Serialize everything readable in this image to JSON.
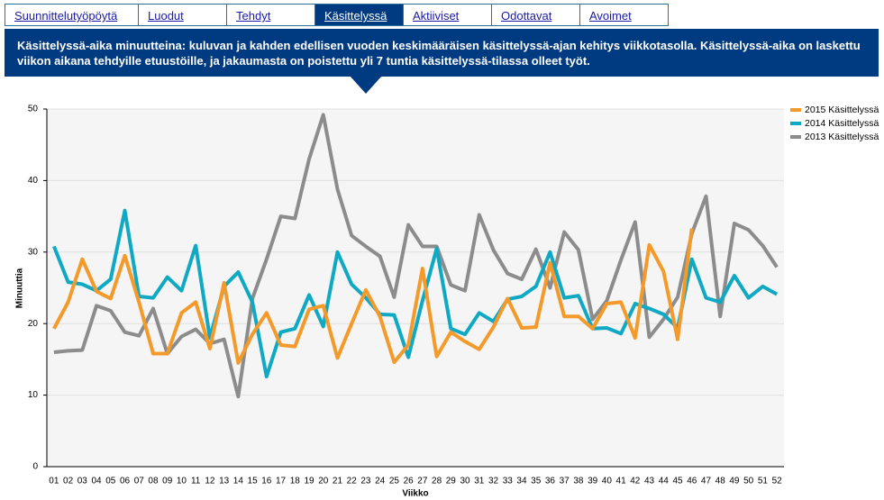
{
  "tabs": [
    {
      "label": "Suunnittelutyöpöytä",
      "active": false
    },
    {
      "label": "Luodut",
      "active": false
    },
    {
      "label": "Tehdyt",
      "active": false
    },
    {
      "label": "Käsittelyssä",
      "active": true
    },
    {
      "label": "Aktiiviset",
      "active": false
    },
    {
      "label": "Odottavat",
      "active": false
    },
    {
      "label": "Avoimet",
      "active": false
    }
  ],
  "banner": "Käsittelyssä-aika minuutteina: kuluvan ja kahden edellisen vuoden keskimääräisen käsittelyssä-ajan kehitys viikkotasolla. Käsittelyssä-aika on laskettu viikon aikana tehdyille etuustöille, ja jakaumasta on poistettu yli 7 tuntia käsittelyssä-tilassa olleet työt.",
  "chart_data": {
    "type": "line",
    "x_label": "Viikko",
    "y_label": "Minuuttia",
    "categories": [
      "01",
      "02",
      "03",
      "04",
      "05",
      "06",
      "07",
      "08",
      "09",
      "10",
      "11",
      "12",
      "13",
      "14",
      "15",
      "16",
      "17",
      "18",
      "19",
      "20",
      "21",
      "22",
      "23",
      "24",
      "25",
      "26",
      "27",
      "28",
      "29",
      "30",
      "31",
      "32",
      "33",
      "34",
      "35",
      "36",
      "37",
      "38",
      "39",
      "40",
      "41",
      "42",
      "43",
      "44",
      "45",
      "46",
      "47",
      "48",
      "49",
      "50",
      "51",
      "52"
    ],
    "series": [
      {
        "name": "2015 Käsittelyssä",
        "color": "#f39a2b",
        "values": [
          19.3,
          23,
          29,
          24.5,
          23.5,
          29.5,
          23,
          15.8,
          15.8,
          21.5,
          23,
          16.5,
          25.7,
          14.5,
          18.5,
          21.5,
          17,
          16.8,
          22,
          22.5,
          15.2,
          20,
          24.7,
          21,
          14.6,
          17,
          27.7,
          15.4,
          18.8,
          17.5,
          16.4,
          19.5,
          23.5,
          19.4,
          19.5,
          28.5,
          21,
          21,
          19.3,
          22.8,
          23,
          18,
          31,
          27.3,
          17.8,
          33.3,
          null,
          null,
          null,
          null,
          null,
          null
        ]
      },
      {
        "name": "2014 Käsittelyssä",
        "color": "#10a9c4",
        "values": [
          30.8,
          25.8,
          25.5,
          24.6,
          26.2,
          35.8,
          23.8,
          23.6,
          26.5,
          24.6,
          30.9,
          18,
          25.2,
          27.2,
          23,
          12.6,
          18.8,
          19.3,
          24,
          19.6,
          30,
          25.5,
          23.6,
          21.3,
          21.2,
          15.3,
          23.2,
          30.5,
          19.3,
          18.5,
          21.5,
          20.3,
          23.4,
          23.8,
          25.2,
          30,
          23.6,
          23.9,
          19.3,
          19.4,
          18.6,
          22.8,
          22.1,
          21.3,
          19.4,
          29,
          23.6,
          23,
          26.7,
          23.6,
          25.2,
          24.1
        ]
      },
      {
        "name": "2013 Käsittelyssä",
        "color": "#8c8c8c",
        "values": [
          16,
          16.2,
          16.3,
          22.5,
          21.8,
          18.8,
          18.3,
          22.1,
          15.8,
          18.2,
          19.2,
          17.2,
          17.8,
          9.8,
          23.5,
          29,
          35,
          34.7,
          43,
          49.2,
          38.8,
          32.3,
          30.8,
          29.4,
          23.7,
          33.8,
          30.8,
          30.8,
          25.4,
          24.6,
          35.2,
          30.3,
          27,
          26.2,
          30.4,
          25,
          32.8,
          30.3,
          20.6,
          23.2,
          28.9,
          34.2,
          18.1,
          20.6,
          23.7,
          32.6,
          37.8,
          21,
          34,
          33.1,
          30.9,
          27.9
        ]
      }
    ],
    "ylim": [
      0,
      50
    ],
    "yticks": [
      0,
      10,
      20,
      30,
      40,
      50
    ],
    "grid": true,
    "legend": "right"
  }
}
